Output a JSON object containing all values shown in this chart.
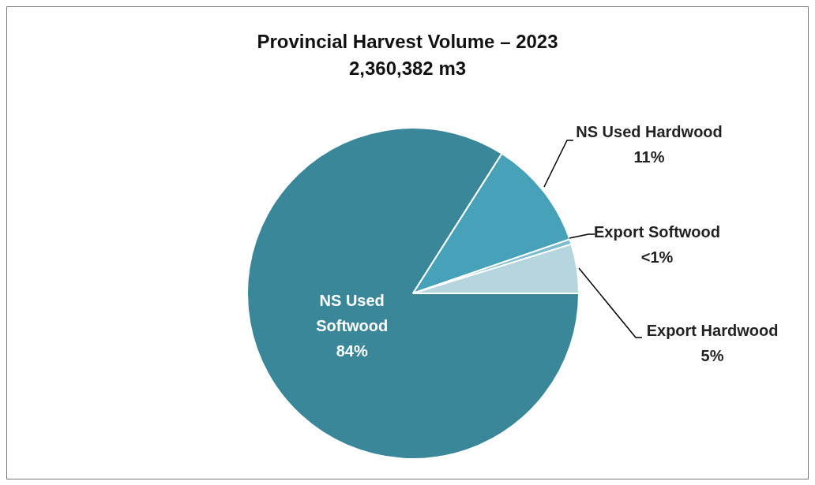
{
  "chart_data": {
    "type": "pie",
    "title": "Provincial Harvest Volume – 2023",
    "subtitle": "2,360,382 m3",
    "categories": [
      "NS Used Softwood",
      "NS Used Hardwood",
      "Export Softwood",
      "Export Hardwood"
    ],
    "values": [
      84,
      10.7,
      0.5,
      4.8
    ],
    "colors": [
      "#3a8799",
      "#47a1b8",
      "#7cbccc",
      "#b5d5df"
    ],
    "value_labels": [
      "84%",
      "11%",
      "<1%",
      "5%"
    ]
  }
}
